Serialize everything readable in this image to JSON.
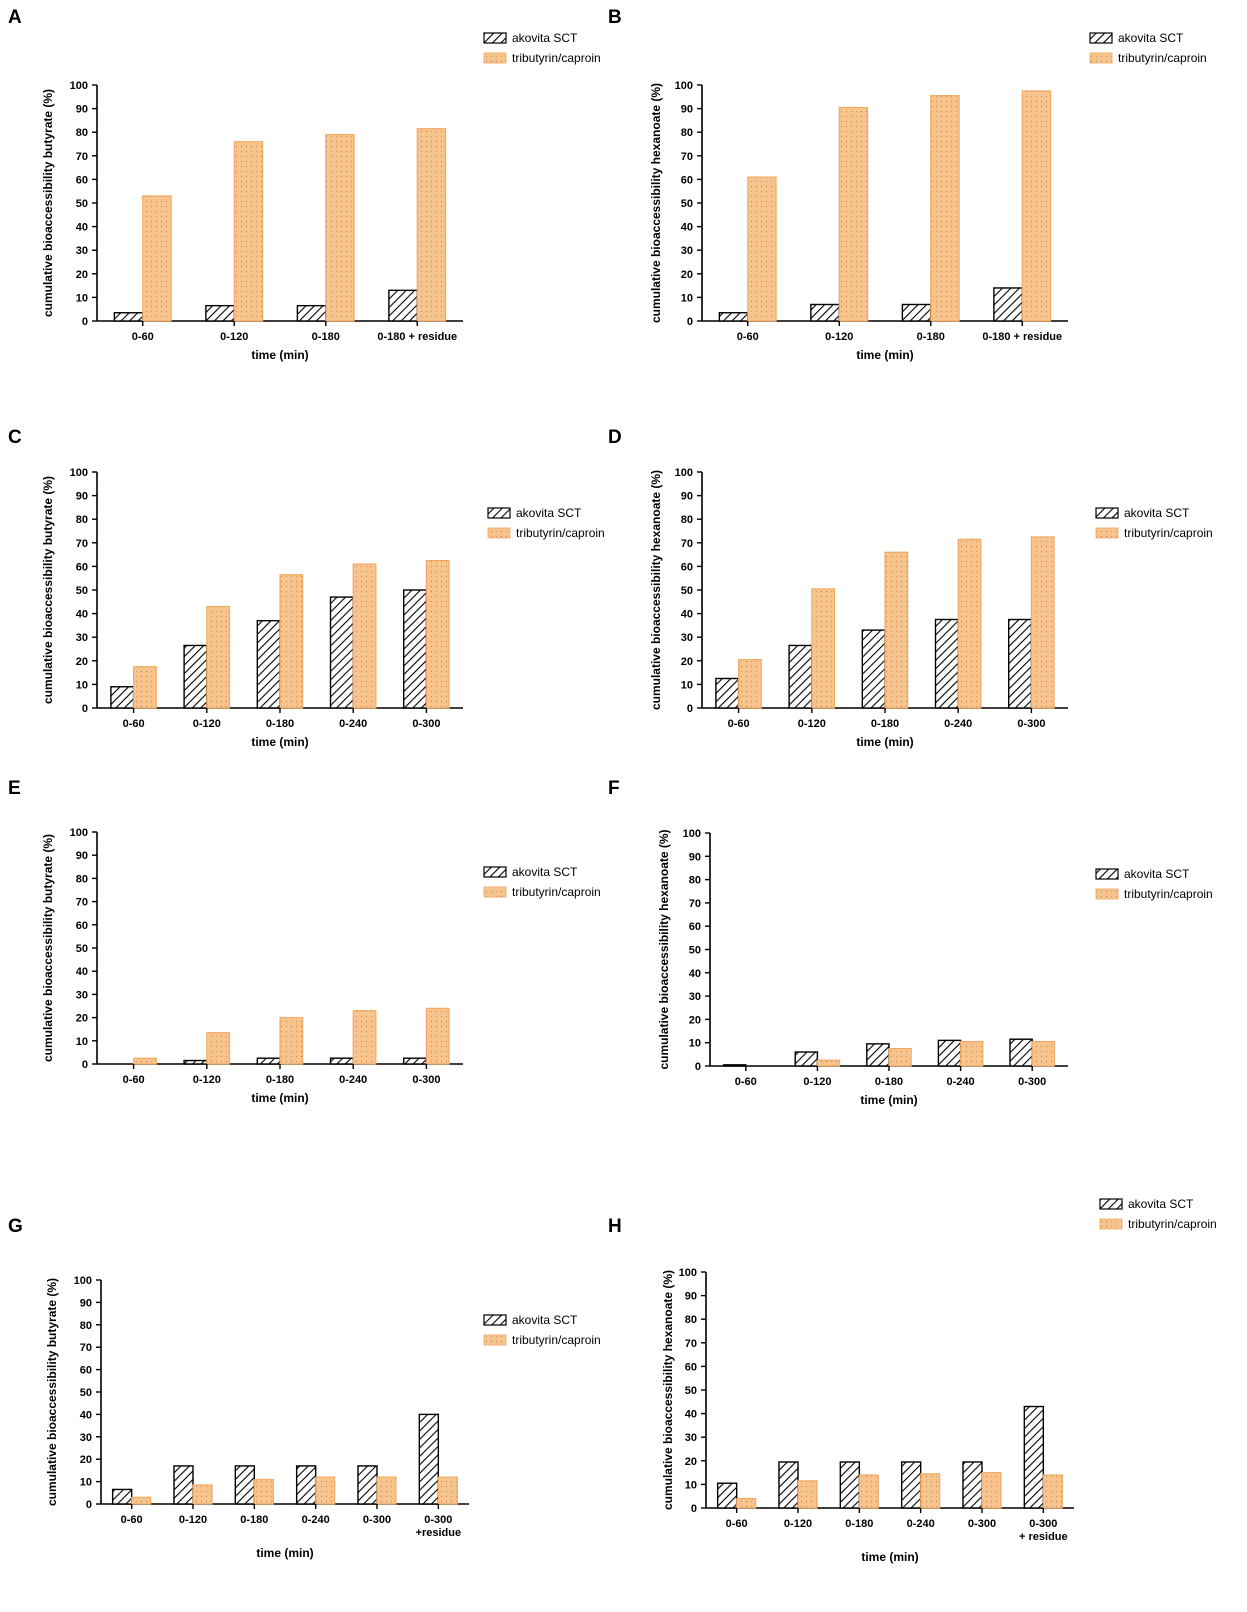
{
  "colors": {
    "series_a_fill": "#ffffff",
    "series_a_stroke": "#000000",
    "series_b_fill": "#f8c48e",
    "series_b_stroke": "#f0a860"
  },
  "chart_data": [
    {
      "panel": "A",
      "type": "bar",
      "categories": [
        "0-60",
        "0-120",
        "0-180",
        "0-180 + residue"
      ],
      "series": [
        {
          "name": "akovita SCT",
          "values": [
            3.5,
            6.5,
            6.5,
            13
          ]
        },
        {
          "name": "tributyrin/caproin",
          "values": [
            53,
            76,
            79,
            81.5
          ]
        }
      ],
      "title": "",
      "xlabel": "time (min)",
      "ylabel": "cumulative bioaccessibility butyrate (%)",
      "ylim": [
        0,
        100
      ],
      "yticks": [
        "0",
        "10",
        "20",
        "30",
        "40",
        "50",
        "60",
        "70",
        "80",
        "90",
        "100"
      ],
      "legend": "top-right"
    },
    {
      "panel": "B",
      "type": "bar",
      "categories": [
        "0-60",
        "0-120",
        "0-180",
        "0-180 + residue"
      ],
      "series": [
        {
          "name": "akovita SCT",
          "values": [
            3.5,
            7,
            7,
            14
          ]
        },
        {
          "name": "tributyrin/caproin",
          "values": [
            61,
            90.5,
            95.5,
            97.5
          ]
        }
      ],
      "title": "",
      "xlabel": "time (min)",
      "ylabel": "cumulative bioaccessibility hexanoate (%)",
      "ylim": [
        0,
        100
      ],
      "yticks": [
        "0",
        "10",
        "20",
        "30",
        "40",
        "50",
        "60",
        "70",
        "80",
        "90",
        "100"
      ],
      "legend": "top-right"
    },
    {
      "panel": "C",
      "type": "bar",
      "categories": [
        "0-60",
        "0-120",
        "0-180",
        "0-240",
        "0-300"
      ],
      "series": [
        {
          "name": "akovita SCT",
          "values": [
            9,
            26.5,
            37,
            47,
            50
          ]
        },
        {
          "name": "tributyrin/caproin",
          "values": [
            17.5,
            43,
            56.5,
            61,
            62.5
          ]
        }
      ],
      "title": "",
      "xlabel": "time (min)",
      "ylabel": "cumulative bioaccessibility butyrate (%)",
      "ylim": [
        0,
        100
      ],
      "yticks": [
        "0",
        "10",
        "20",
        "30",
        "40",
        "50",
        "60",
        "70",
        "80",
        "90",
        "100"
      ],
      "legend": "right"
    },
    {
      "panel": "D",
      "type": "bar",
      "categories": [
        "0-60",
        "0-120",
        "0-180",
        "0-240",
        "0-300"
      ],
      "series": [
        {
          "name": "akovita SCT",
          "values": [
            12.5,
            26.5,
            33,
            37.5,
            37.5
          ]
        },
        {
          "name": "tributyrin/caproin",
          "values": [
            20.5,
            50.5,
            66,
            71.5,
            72.5
          ]
        }
      ],
      "title": "",
      "xlabel": "time (min)",
      "ylabel": "cumulative bioaccessibility hexanoate (%)",
      "ylim": [
        0,
        100
      ],
      "yticks": [
        "0",
        "10",
        "20",
        "30",
        "40",
        "50",
        "60",
        "70",
        "80",
        "90",
        "100"
      ],
      "legend": "right"
    },
    {
      "panel": "E",
      "type": "bar",
      "categories": [
        "0-60",
        "0-120",
        "0-180",
        "0-240",
        "0-300"
      ],
      "series": [
        {
          "name": "akovita SCT",
          "values": [
            0,
            1.5,
            2.5,
            2.5,
            2.5
          ]
        },
        {
          "name": "tributyrin/caproin",
          "values": [
            2.5,
            13.5,
            20,
            23,
            24
          ]
        }
      ],
      "title": "",
      "xlabel": "time (min)",
      "ylabel": "cumulative bioaccessibility butyrate (%)",
      "ylim": [
        0,
        100
      ],
      "yticks": [
        "0",
        "10",
        "20",
        "30",
        "40",
        "50",
        "60",
        "70",
        "80",
        "90",
        "100"
      ],
      "legend": "right"
    },
    {
      "panel": "F",
      "type": "bar",
      "categories": [
        "0-60",
        "0-120",
        "0-180",
        "0-240",
        "0-300"
      ],
      "series": [
        {
          "name": "akovita SCT",
          "values": [
            0.5,
            6,
            9.5,
            11,
            11.5
          ]
        },
        {
          "name": "tributyrin/caproin",
          "values": [
            0,
            2.5,
            7.5,
            10.5,
            10.5
          ]
        }
      ],
      "title": "",
      "xlabel": "time (min)",
      "ylabel": "cumulative bioaccessibility hexanoate (%)",
      "ylim": [
        0,
        100
      ],
      "yticks": [
        "0",
        "10",
        "20",
        "30",
        "40",
        "50",
        "60",
        "70",
        "80",
        "90",
        "100"
      ],
      "legend": "right"
    },
    {
      "panel": "G",
      "type": "bar",
      "categories": [
        "0-60",
        "0-120",
        "0-180",
        "0-240",
        "0-300",
        "0-300\n+residue"
      ],
      "series": [
        {
          "name": "akovita SCT",
          "values": [
            6.5,
            17,
            17,
            17,
            17,
            40
          ]
        },
        {
          "name": "tributyrin/caproin",
          "values": [
            3,
            8.5,
            11,
            12,
            12,
            12
          ]
        }
      ],
      "title": "",
      "xlabel": "time (min)",
      "ylabel": "cumulative bioaccessibility butyrate (%)",
      "ylim": [
        0,
        100
      ],
      "yticks": [
        "0",
        "10",
        "20",
        "30",
        "40",
        "50",
        "60",
        "70",
        "80",
        "90",
        "100"
      ],
      "legend": "right"
    },
    {
      "panel": "H",
      "type": "bar",
      "categories": [
        "0-60",
        "0-120",
        "0-180",
        "0-240",
        "0-300",
        "0-300\n+ residue"
      ],
      "series": [
        {
          "name": "akovita SCT",
          "values": [
            10.5,
            19.5,
            19.5,
            19.5,
            19.5,
            43
          ]
        },
        {
          "name": "tributyrin/caproin",
          "values": [
            4,
            11.5,
            14,
            14.5,
            15,
            14
          ]
        }
      ],
      "title": "",
      "xlabel": "time (min)",
      "ylabel": "cumulative bioaccessibility hexanoate (%)",
      "ylim": [
        0,
        100
      ],
      "yticks": [
        "0",
        "10",
        "20",
        "30",
        "40",
        "50",
        "60",
        "70",
        "80",
        "90",
        "100"
      ],
      "legend": "top-right"
    }
  ]
}
